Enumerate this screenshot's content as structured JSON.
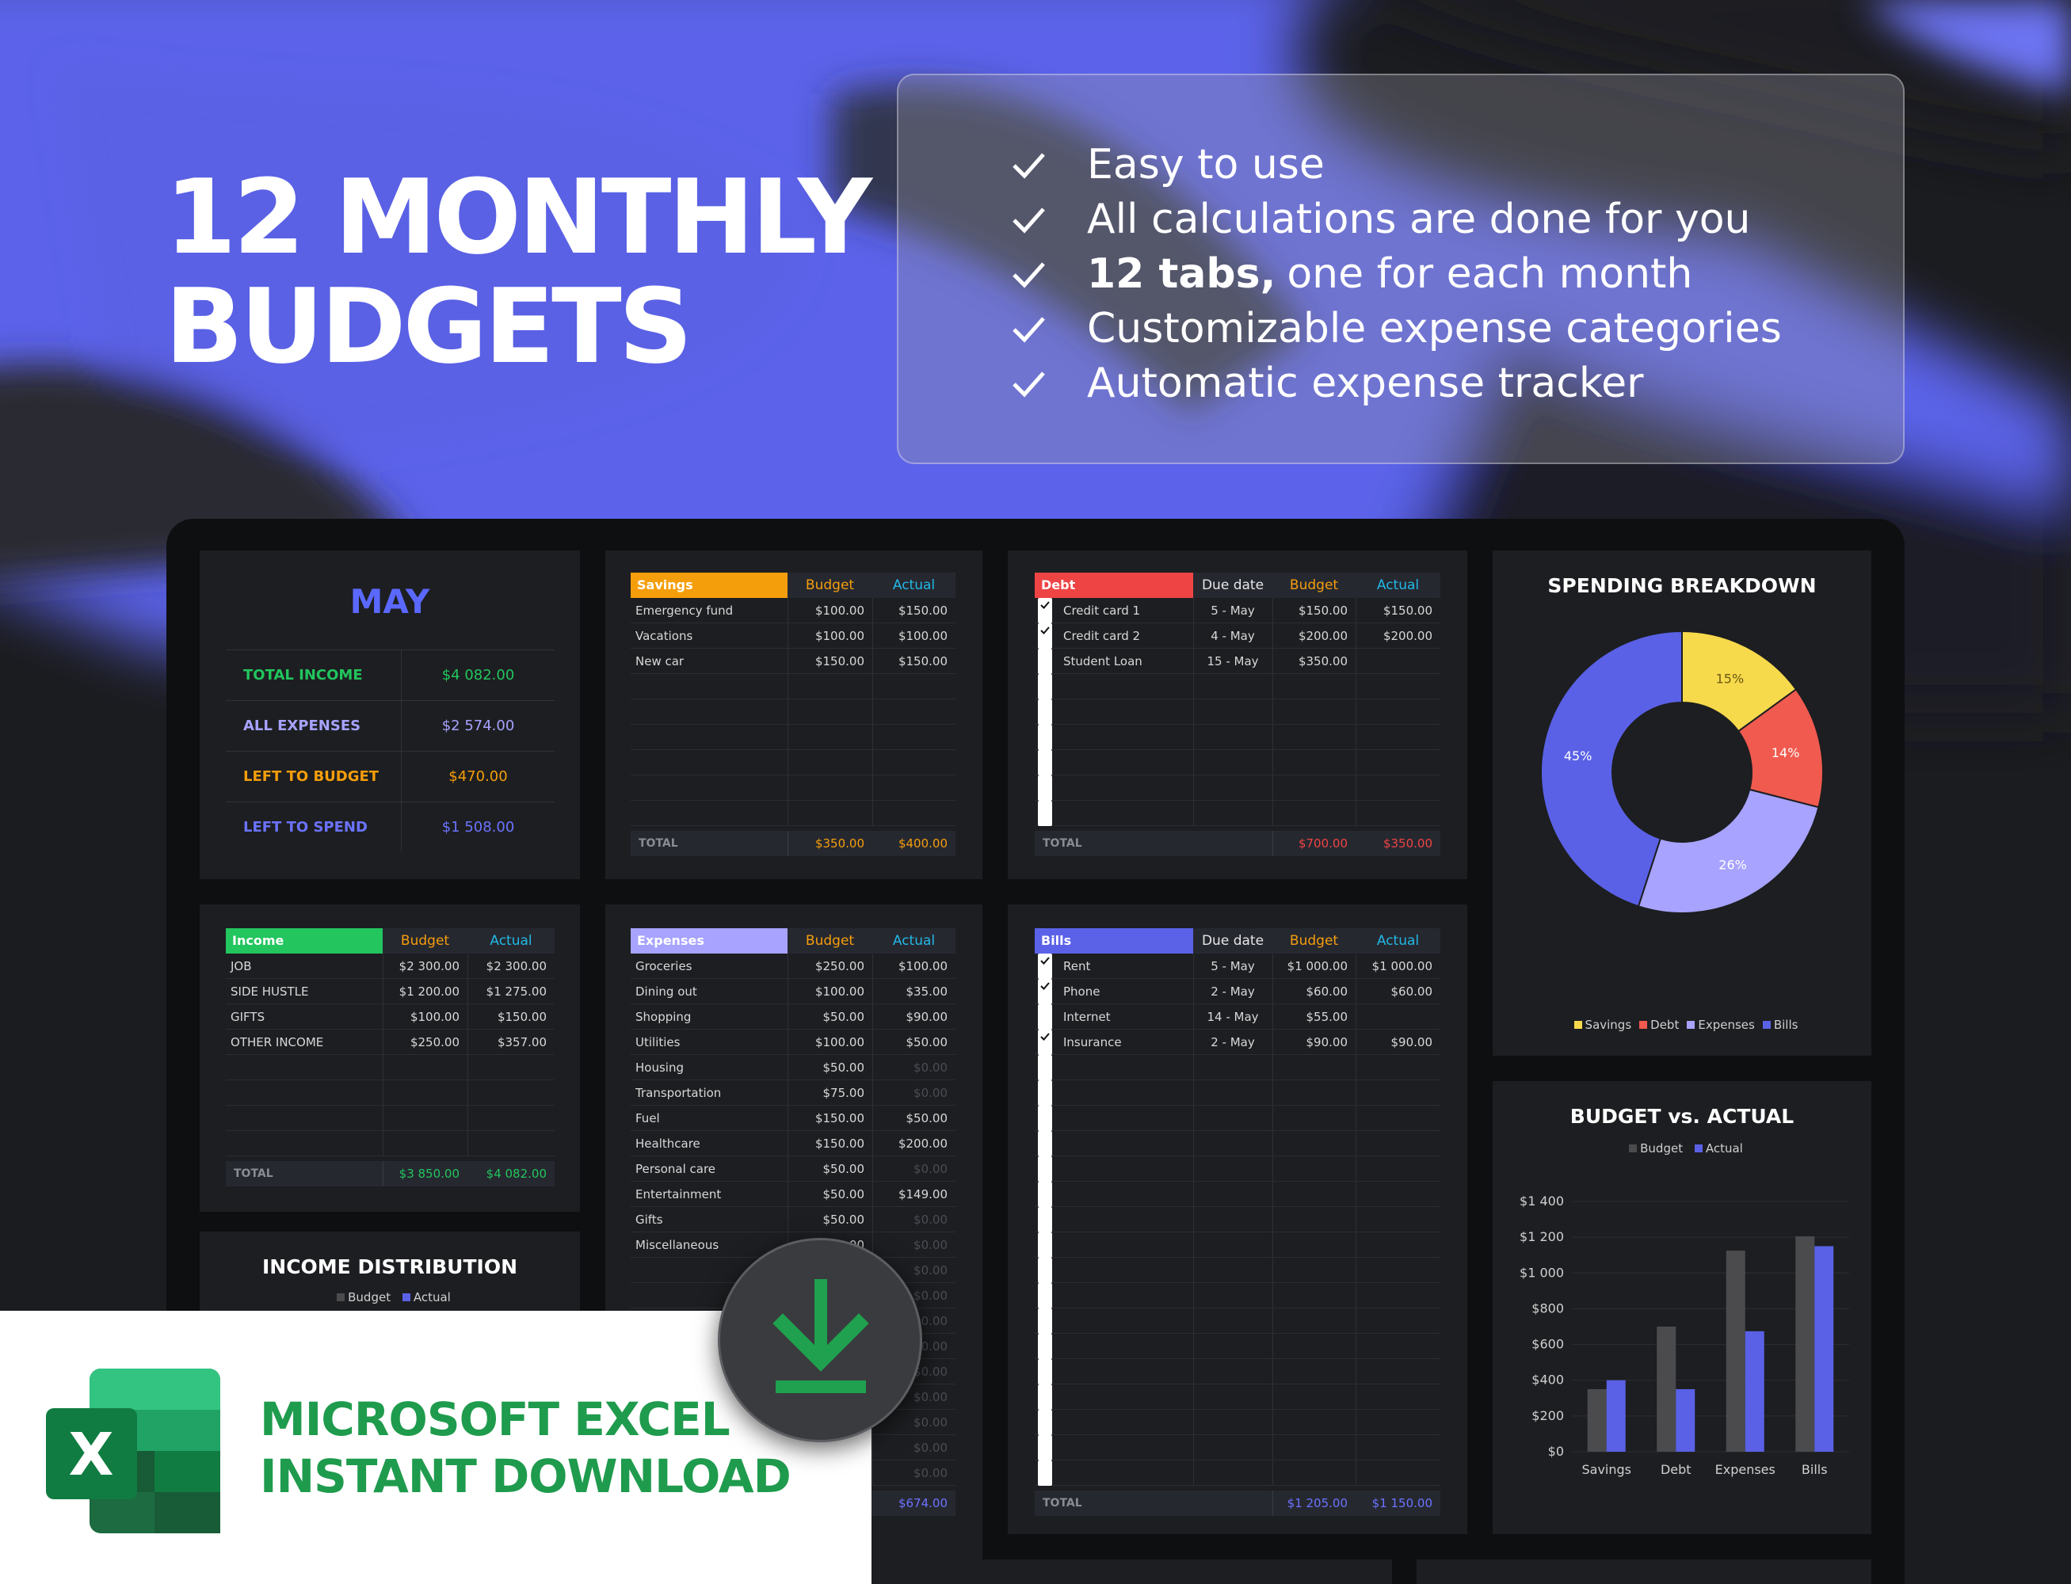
{
  "hero": {
    "line1": "12 MONTHLY",
    "line2": "BUDGETS"
  },
  "features": [
    {
      "bold": "",
      "text": "Easy to use"
    },
    {
      "bold": "",
      "text": "All calculations are done for you"
    },
    {
      "bold": "12 tabs,",
      "text": "one for each month"
    },
    {
      "bold": "",
      "text": "Customizable expense categories"
    },
    {
      "bold": "",
      "text": "Automatic expense tracker"
    }
  ],
  "summary": {
    "month": "MAY",
    "rows": [
      {
        "label": "TOTAL INCOME",
        "value": "$4 082.00",
        "color": "#22c55e"
      },
      {
        "label": "ALL EXPENSES",
        "value": "$2 574.00",
        "color": "#a7a3ff"
      },
      {
        "label": "LEFT TO BUDGET",
        "value": "$470.00",
        "color": "#f59e0b"
      },
      {
        "label": "LEFT TO SPEND",
        "value": "$1 508.00",
        "color": "#6b73ff"
      }
    ]
  },
  "savings": {
    "title": "Savings",
    "col_budget": "Budget",
    "col_actual": "Actual",
    "color": "#f59e0b",
    "rows": [
      {
        "name": "Emergency fund",
        "budget": "$100.00",
        "actual": "$150.00"
      },
      {
        "name": "Vacations",
        "budget": "$100.00",
        "actual": "$100.00"
      },
      {
        "name": "New car",
        "budget": "$150.00",
        "actual": "$150.00"
      }
    ],
    "total_label": "TOTAL",
    "total_budget": "$350.00",
    "total_actual": "$400.00"
  },
  "debt": {
    "title": "Debt",
    "col_due": "Due date",
    "col_budget": "Budget",
    "col_actual": "Actual",
    "color": "#ef4444",
    "rows": [
      {
        "checked": true,
        "name": "Credit card 1",
        "due": "5 - May",
        "budget": "$150.00",
        "actual": "$150.00"
      },
      {
        "checked": true,
        "name": "Credit card 2",
        "due": "4 - May",
        "budget": "$200.00",
        "actual": "$200.00"
      },
      {
        "checked": false,
        "name": "Student Loan",
        "due": "15 - May",
        "budget": "$350.00",
        "actual": ""
      }
    ],
    "total_label": "TOTAL",
    "total_budget": "$700.00",
    "total_actual": "$350.00"
  },
  "income": {
    "title": "Income",
    "col_budget": "Budget",
    "col_actual": "Actual",
    "color": "#22c55e",
    "rows": [
      {
        "name": "JOB",
        "budget": "$2 300.00",
        "actual": "$2 300.00"
      },
      {
        "name": "SIDE HUSTLE",
        "budget": "$1 200.00",
        "actual": "$1 275.00"
      },
      {
        "name": "GIFTS",
        "budget": "$100.00",
        "actual": "$150.00"
      },
      {
        "name": "OTHER INCOME",
        "budget": "$250.00",
        "actual": "$357.00"
      }
    ],
    "total_label": "TOTAL",
    "total_budget": "$3 850.00",
    "total_actual": "$4 082.00"
  },
  "expenses": {
    "title": "Expenses",
    "col_budget": "Budget",
    "col_actual": "Actual",
    "color": "#a7a3ff",
    "rows": [
      {
        "name": "Groceries",
        "budget": "$250.00",
        "actual": "$100.00"
      },
      {
        "name": "Dining out",
        "budget": "$100.00",
        "actual": "$35.00"
      },
      {
        "name": "Shopping",
        "budget": "$50.00",
        "actual": "$90.00"
      },
      {
        "name": "Utilities",
        "budget": "$100.00",
        "actual": "$50.00"
      },
      {
        "name": "Housing",
        "budget": "$50.00",
        "actual": "$0.00"
      },
      {
        "name": "Transportation",
        "budget": "$75.00",
        "actual": "$0.00"
      },
      {
        "name": "Fuel",
        "budget": "$150.00",
        "actual": "$50.00"
      },
      {
        "name": "Healthcare",
        "budget": "$150.00",
        "actual": "$200.00"
      },
      {
        "name": "Personal care",
        "budget": "$50.00",
        "actual": "$0.00"
      },
      {
        "name": "Entertainment",
        "budget": "$50.00",
        "actual": "$149.00"
      },
      {
        "name": "Gifts",
        "budget": "$50.00",
        "actual": "$0.00"
      },
      {
        "name": "Miscellaneous",
        "budget": "$50.00",
        "actual": "$0.00"
      },
      {
        "name": "",
        "budget": "",
        "actual": "$0.00"
      },
      {
        "name": "",
        "budget": "",
        "actual": "$0.00"
      },
      {
        "name": "",
        "budget": "",
        "actual": "$0.00"
      },
      {
        "name": "",
        "budget": "",
        "actual": "$0.00"
      },
      {
        "name": "",
        "budget": "",
        "actual": "$0.00"
      },
      {
        "name": "",
        "budget": "",
        "actual": "$0.00"
      },
      {
        "name": "",
        "budget": "",
        "actual": "$0.00"
      },
      {
        "name": "",
        "budget": "",
        "actual": "$0.00"
      },
      {
        "name": "",
        "budget": "",
        "actual": "$0.00"
      }
    ],
    "total_actual": "$674.00"
  },
  "bills": {
    "title": "Bills",
    "col_due": "Due date",
    "col_budget": "Budget",
    "col_actual": "Actual",
    "color": "#5b62e8",
    "rows": [
      {
        "checked": true,
        "name": "Rent",
        "due": "5 - May",
        "budget": "$1 000.00",
        "actual": "$1 000.00"
      },
      {
        "checked": true,
        "name": "Phone",
        "due": "2 - May",
        "budget": "$60.00",
        "actual": "$60.00"
      },
      {
        "checked": false,
        "name": "Internet",
        "due": "14 - May",
        "budget": "$55.00",
        "actual": ""
      },
      {
        "checked": true,
        "name": "Insurance",
        "due": "2 - May",
        "budget": "$90.00",
        "actual": "$90.00"
      }
    ],
    "total_label": "TOTAL",
    "total_budget": "$1 205.00",
    "total_actual": "$1 150.00"
  },
  "income_distribution": {
    "title": "INCOME DISTRIBUTION",
    "legend": [
      "Budget",
      "Actual"
    ]
  },
  "colors": {
    "savings": "#f7d94c",
    "debt": "#f05a4f",
    "expenses": "#a7a3ff",
    "bills": "#5a61e6",
    "budget_bar": "#4b4b4e",
    "actual_bar": "#5a61e6"
  },
  "chart_data": [
    {
      "type": "pie",
      "title": "SPENDING BREAKDOWN",
      "categories": [
        "Savings",
        "Debt",
        "Expenses",
        "Bills"
      ],
      "values": [
        15,
        14,
        26,
        45
      ],
      "labels": [
        "15%",
        "14%",
        "26%",
        "45%"
      ],
      "legend": "bottom"
    },
    {
      "type": "bar",
      "title": "BUDGET vs. ACTUAL",
      "categories": [
        "Savings",
        "Debt",
        "Expenses",
        "Bills"
      ],
      "series": [
        {
          "name": "Budget",
          "values": [
            350,
            700,
            1125,
            1205
          ]
        },
        {
          "name": "Actual",
          "values": [
            400,
            350,
            674,
            1150
          ]
        }
      ],
      "yticks": [
        "$0",
        "$200",
        "$400",
        "$600",
        "$800",
        "$1 000",
        "$1 200",
        "$1 400"
      ],
      "ylim": [
        0,
        1400
      ],
      "legend": "top"
    }
  ],
  "banner": {
    "line1": "MICROSOFT EXCEL",
    "line2": "INSTANT DOWNLOAD",
    "excel_letter": "X"
  }
}
